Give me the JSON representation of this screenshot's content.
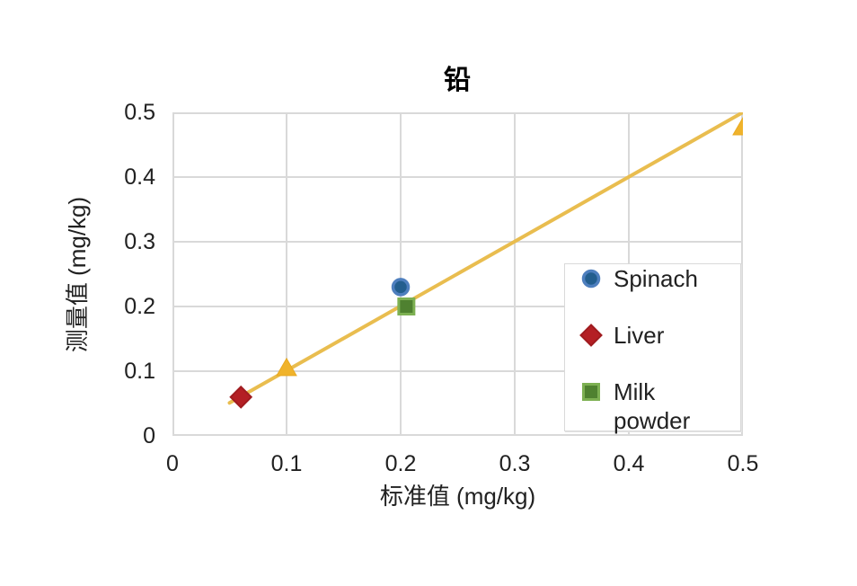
{
  "chart_data": {
    "type": "scatter",
    "title": "铅",
    "xlabel": "标准值 (mg/kg)",
    "ylabel": "测量值 (mg/kg)",
    "xlim": [
      0,
      0.5
    ],
    "ylim": [
      0,
      0.5
    ],
    "x_ticks": [
      0,
      0.1,
      0.2,
      0.3,
      0.4,
      0.5
    ],
    "y_ticks": [
      0,
      0.1,
      0.2,
      0.3,
      0.4,
      0.5
    ],
    "x_tick_labels": [
      "0",
      "0.1",
      "0.2",
      "0.3",
      "0.4",
      "0.5"
    ],
    "y_tick_labels": [
      "0",
      "0.1",
      "0.2",
      "0.3",
      "0.4",
      "0.5"
    ],
    "grid": true,
    "grid_color": "#D9D9D9",
    "text_color": "#212121",
    "series": [
      {
        "name": "Spinach",
        "marker": "circle",
        "fill": "#235E8E",
        "border": "#4E7FBE",
        "points": [
          [
            0.2,
            0.23
          ]
        ]
      },
      {
        "name": "Liver",
        "marker": "diamond",
        "fill": "#B41F24",
        "border": "#A01B1F",
        "points": [
          [
            0.06,
            0.06
          ]
        ]
      },
      {
        "name": "Milk powder",
        "marker": "square",
        "fill": "#4F8130",
        "border": "#7DB052",
        "points": [
          [
            0.205,
            0.2
          ]
        ]
      },
      {
        "name": "",
        "marker": "triangle",
        "fill": "#F0B32B",
        "border": "#E8A921",
        "points": [
          [
            0.1,
            0.105
          ],
          [
            0.5,
            0.477
          ]
        ]
      }
    ],
    "trendline": {
      "color": "#E9BD4F",
      "width": 4,
      "from": [
        0.05,
        0.051
      ],
      "to": [
        0.5,
        0.5
      ]
    },
    "legend": {
      "position": "inside-right",
      "entries": [
        "Spinach",
        "Liver",
        "Milk powder"
      ]
    }
  }
}
